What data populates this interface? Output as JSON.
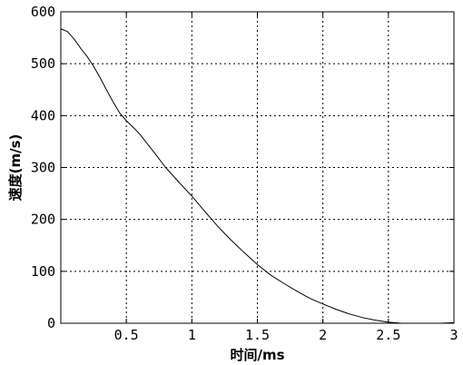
{
  "chart_data": {
    "type": "line",
    "title": "",
    "xlabel": "时间/ms",
    "ylabel": "速度(m/s)",
    "xlim": [
      0,
      3
    ],
    "ylim": [
      0,
      600
    ],
    "grid": true,
    "legend": "none",
    "line_color": "#000000",
    "x_ticks": [
      {
        "value": 0.5,
        "label": "0.5"
      },
      {
        "value": 1,
        "label": "1"
      },
      {
        "value": 1.5,
        "label": "1.5"
      },
      {
        "value": 2,
        "label": "2"
      },
      {
        "value": 2.5,
        "label": "2.5"
      },
      {
        "value": 3,
        "label": "3"
      }
    ],
    "y_ticks": [
      {
        "value": 0,
        "label": "0"
      },
      {
        "value": 100,
        "label": "100"
      },
      {
        "value": 200,
        "label": "200"
      },
      {
        "value": 300,
        "label": "300"
      },
      {
        "value": 400,
        "label": "400"
      },
      {
        "value": 500,
        "label": "500"
      },
      {
        "value": 600,
        "label": "600"
      }
    ],
    "series": [
      {
        "x": [
          0,
          0.05,
          0.1,
          0.15,
          0.2,
          0.25,
          0.3,
          0.35,
          0.4,
          0.45,
          0.5,
          0.55,
          0.6,
          0.7,
          0.8,
          0.9,
          1.0,
          1.1,
          1.2,
          1.3,
          1.4,
          1.5,
          1.6,
          1.7,
          1.8,
          1.9,
          2.0,
          2.1,
          2.2,
          2.3,
          2.4,
          2.5,
          2.55,
          2.6,
          2.7,
          2.8,
          2.9,
          3.0
        ],
        "y": [
          567,
          562,
          548,
          530,
          514,
          495,
          473,
          449,
          426,
          405,
          390,
          378,
          365,
          333,
          300,
          272,
          245,
          215,
          186,
          160,
          136,
          113,
          93,
          77,
          62,
          48,
          37,
          27,
          18,
          11,
          6,
          2,
          1,
          0,
          0,
          0,
          0,
          1
        ]
      }
    ]
  }
}
